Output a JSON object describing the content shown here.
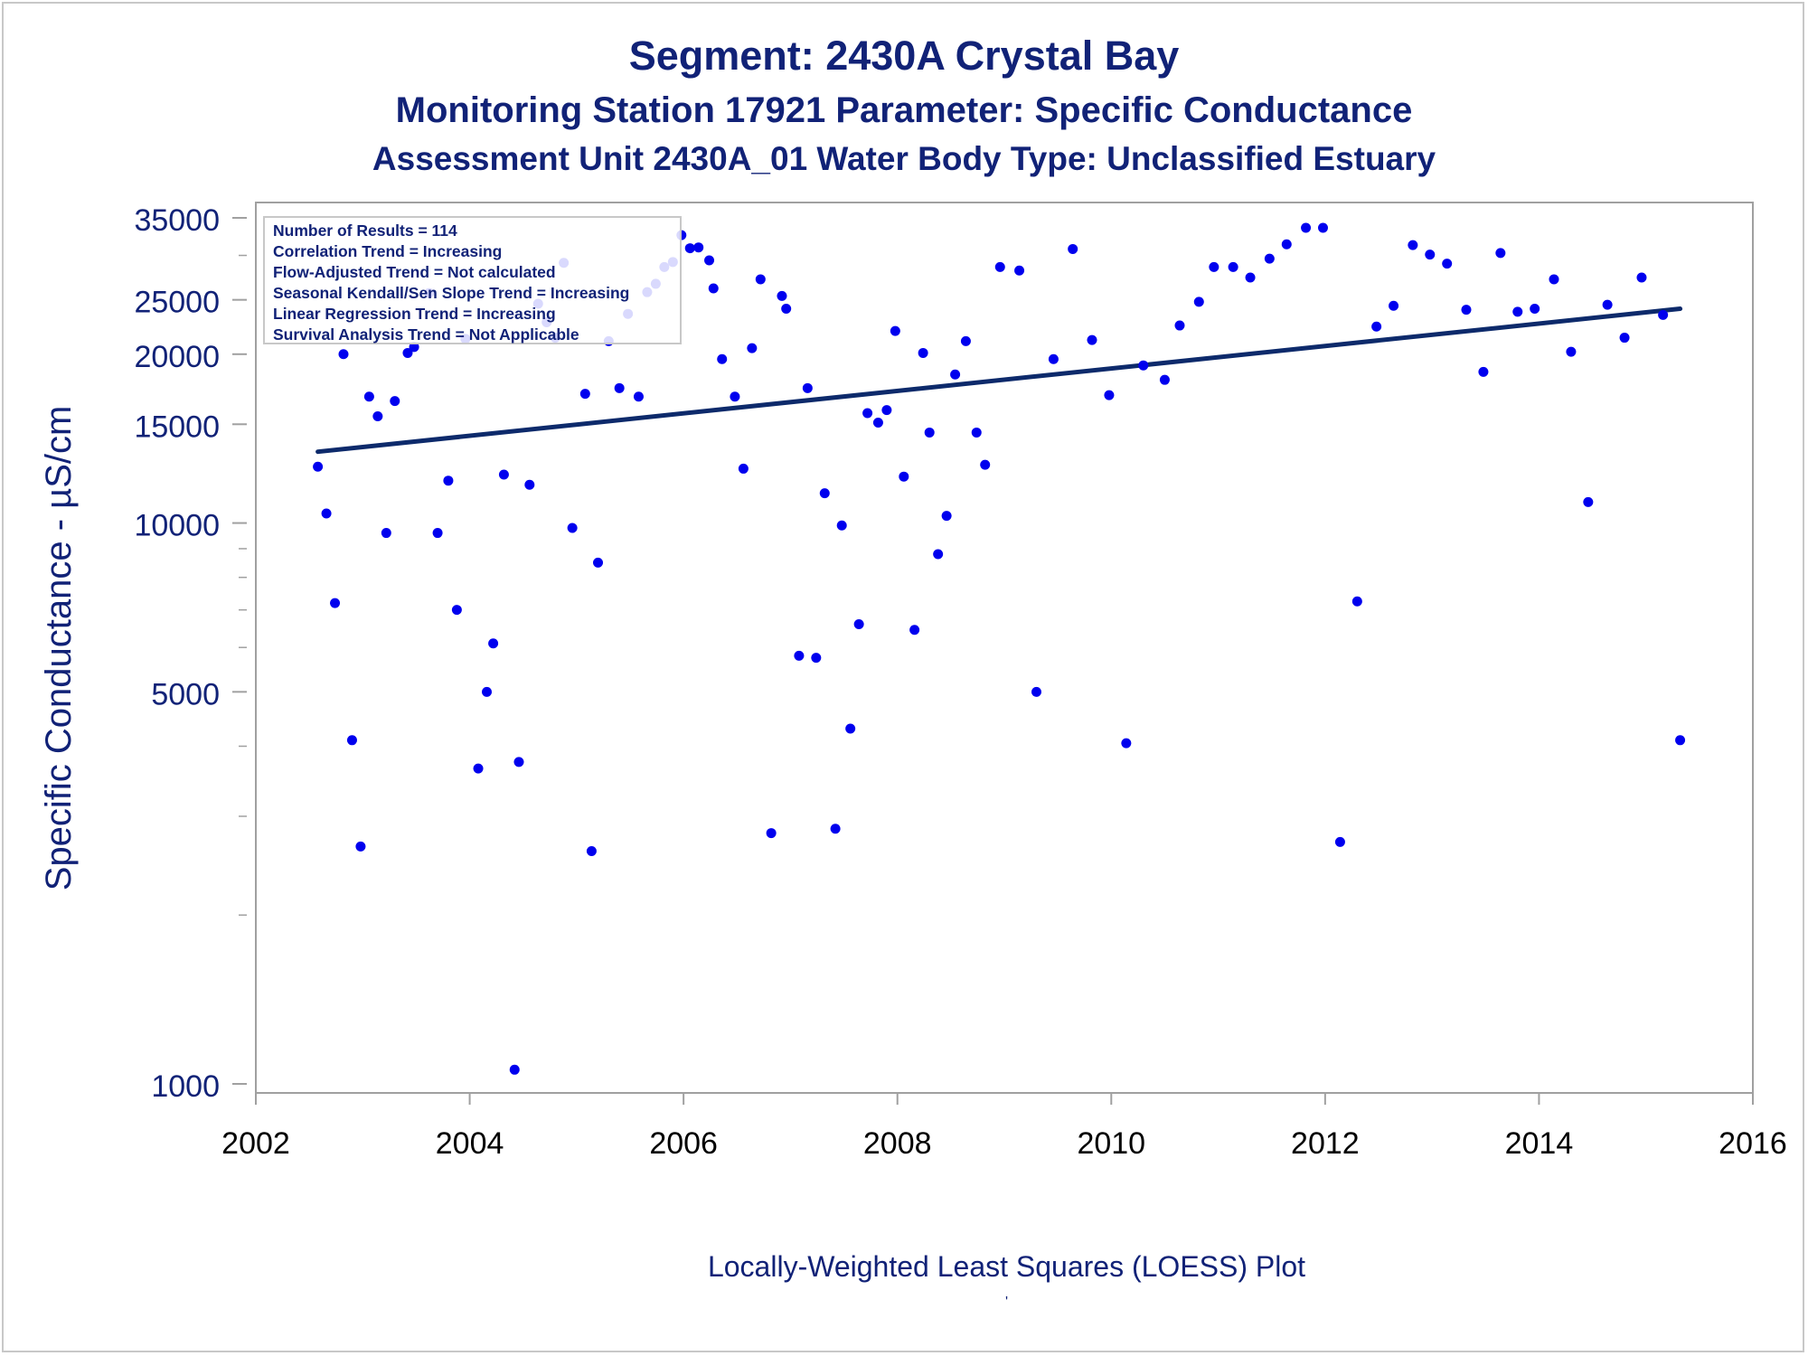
{
  "titles": {
    "line1": "Segment: 2430A  Crystal Bay",
    "line2": "Monitoring Station 17921 Parameter: Specific Conductance",
    "line3": "Assessment Unit 2430A_01   Water Body Type: Unclassified Estuary"
  },
  "footnote": "Locally-Weighted Least Squares (LOESS) Plot",
  "footnote_mark": "'",
  "colors": {
    "text": "#112277",
    "points": "#0000ee",
    "trend_line": "#0d2a6b",
    "axis": "#a0a0a0"
  },
  "legend_box": [
    "Number of Results = 114",
    "Correlation Trend = Increasing",
    "Flow-Adjusted Trend = Not calculated",
    "Seasonal Kendall/Sen Slope Trend = Increasing",
    "Linear Regression Trend = Increasing",
    "Survival Analysis Trend = Not Applicable"
  ],
  "chart_data": {
    "type": "scatter",
    "ylabel": "Specific Conductance -  µS/cm",
    "yscale": "log",
    "ylim": [
      1000,
      35000
    ],
    "xlim": [
      2002,
      2016
    ],
    "xticks": [
      "2002",
      "2004",
      "2006",
      "2008",
      "2010",
      "2012",
      "2014",
      "2016"
    ],
    "yticks": [
      "1000",
      "5000",
      "10000",
      "15000",
      "20000",
      "25000",
      "35000"
    ],
    "points": [
      [
        2002.58,
        12600
      ],
      [
        2002.66,
        10400
      ],
      [
        2002.74,
        7200
      ],
      [
        2002.82,
        20000
      ],
      [
        2002.9,
        4100
      ],
      [
        2002.98,
        2650
      ],
      [
        2003.06,
        16800
      ],
      [
        2003.14,
        15500
      ],
      [
        2003.22,
        9600
      ],
      [
        2003.3,
        16500
      ],
      [
        2003.42,
        20100
      ],
      [
        2003.48,
        20600
      ],
      [
        2003.62,
        25700
      ],
      [
        2003.7,
        9600
      ],
      [
        2003.8,
        11900
      ],
      [
        2003.88,
        7000
      ],
      [
        2003.96,
        21300
      ],
      [
        2004.08,
        3650
      ],
      [
        2004.16,
        5000
      ],
      [
        2004.22,
        6100
      ],
      [
        2004.32,
        12200
      ],
      [
        2004.42,
        1060
      ],
      [
        2004.46,
        3750
      ],
      [
        2004.56,
        11700
      ],
      [
        2004.64,
        24600
      ],
      [
        2004.72,
        22800
      ],
      [
        2004.8,
        21400
      ],
      [
        2004.88,
        29100
      ],
      [
        2004.96,
        9800
      ],
      [
        2005.08,
        17000
      ],
      [
        2005.14,
        2600
      ],
      [
        2005.2,
        8500
      ],
      [
        2005.3,
        21100
      ],
      [
        2005.4,
        17400
      ],
      [
        2005.48,
        23600
      ],
      [
        2005.58,
        16800
      ],
      [
        2005.66,
        25800
      ],
      [
        2005.74,
        26700
      ],
      [
        2005.82,
        28600
      ],
      [
        2005.9,
        29200
      ],
      [
        2005.98,
        32600
      ],
      [
        2006.06,
        30900
      ],
      [
        2006.14,
        31000
      ],
      [
        2006.24,
        29400
      ],
      [
        2006.28,
        26200
      ],
      [
        2006.36,
        19600
      ],
      [
        2006.48,
        16800
      ],
      [
        2006.56,
        12500
      ],
      [
        2006.64,
        20500
      ],
      [
        2006.72,
        27200
      ],
      [
        2006.82,
        2800
      ],
      [
        2006.92,
        25400
      ],
      [
        2006.96,
        24100
      ],
      [
        2007.08,
        5800
      ],
      [
        2007.16,
        17400
      ],
      [
        2007.24,
        5750
      ],
      [
        2007.32,
        11300
      ],
      [
        2007.42,
        2850
      ],
      [
        2007.48,
        9900
      ],
      [
        2007.56,
        4300
      ],
      [
        2007.64,
        6600
      ],
      [
        2007.72,
        15700
      ],
      [
        2007.82,
        15100
      ],
      [
        2007.9,
        15900
      ],
      [
        2007.98,
        22000
      ],
      [
        2008.06,
        12100
      ],
      [
        2008.16,
        6450
      ],
      [
        2008.24,
        20100
      ],
      [
        2008.3,
        14500
      ],
      [
        2008.38,
        8800
      ],
      [
        2008.46,
        10300
      ],
      [
        2008.54,
        18400
      ],
      [
        2008.64,
        21100
      ],
      [
        2008.74,
        14500
      ],
      [
        2008.82,
        12700
      ],
      [
        2008.96,
        28600
      ],
      [
        2009.14,
        28200
      ],
      [
        2009.3,
        5000
      ],
      [
        2009.46,
        19600
      ],
      [
        2009.64,
        30800
      ],
      [
        2009.82,
        21200
      ],
      [
        2009.98,
        16900
      ],
      [
        2010.14,
        4050
      ],
      [
        2010.3,
        19100
      ],
      [
        2010.5,
        18000
      ],
      [
        2010.64,
        22500
      ],
      [
        2010.82,
        24800
      ],
      [
        2010.96,
        28600
      ],
      [
        2011.14,
        28600
      ],
      [
        2011.3,
        27400
      ],
      [
        2011.48,
        29600
      ],
      [
        2011.64,
        31400
      ],
      [
        2011.82,
        33600
      ],
      [
        2011.98,
        33600
      ],
      [
        2012.14,
        2700
      ],
      [
        2012.3,
        7250
      ],
      [
        2012.48,
        22400
      ],
      [
        2012.64,
        24400
      ],
      [
        2012.82,
        31300
      ],
      [
        2012.98,
        30100
      ],
      [
        2013.14,
        29000
      ],
      [
        2013.32,
        24000
      ],
      [
        2013.48,
        18600
      ],
      [
        2013.64,
        30300
      ],
      [
        2013.8,
        23800
      ],
      [
        2013.96,
        24100
      ],
      [
        2014.14,
        27200
      ],
      [
        2014.3,
        20200
      ],
      [
        2014.46,
        10900
      ],
      [
        2014.64,
        24500
      ],
      [
        2014.8,
        21400
      ],
      [
        2014.96,
        27400
      ],
      [
        2015.16,
        23500
      ],
      [
        2015.32,
        4100
      ]
    ],
    "trend_line": [
      [
        2002.58,
        13400
      ],
      [
        2015.32,
        24100
      ]
    ]
  }
}
